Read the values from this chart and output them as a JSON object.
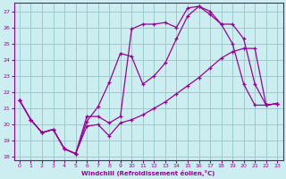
{
  "xlabel": "Windchill (Refroidissement éolien,°C)",
  "bg_color": "#cceef0",
  "grid_color": "#99cccc",
  "line_color": "#990099",
  "ylim": [
    17.8,
    27.5
  ],
  "xlim": [
    -0.5,
    23.5
  ],
  "yticks": [
    18,
    19,
    20,
    21,
    22,
    23,
    24,
    25,
    26,
    27
  ],
  "xticks": [
    0,
    1,
    2,
    3,
    4,
    5,
    6,
    7,
    8,
    9,
    10,
    11,
    12,
    13,
    14,
    15,
    16,
    17,
    18,
    19,
    20,
    21,
    22,
    23
  ],
  "line1_x": [
    0,
    1,
    2,
    3,
    4,
    5,
    6,
    7,
    8,
    9,
    10,
    11,
    12,
    13,
    14,
    15,
    16,
    17,
    18,
    19,
    20,
    21,
    22,
    23
  ],
  "line1_y": [
    21.5,
    20.3,
    19.5,
    19.7,
    18.5,
    18.2,
    19.9,
    20.0,
    19.3,
    20.1,
    20.3,
    20.6,
    21.0,
    21.4,
    21.9,
    22.4,
    22.9,
    23.5,
    24.1,
    24.5,
    24.7,
    24.7,
    21.2,
    21.3
  ],
  "line2_x": [
    0,
    1,
    2,
    3,
    4,
    5,
    6,
    7,
    8,
    9,
    10,
    11,
    12,
    13,
    14,
    15,
    16,
    17,
    18,
    19,
    20,
    21,
    22,
    23
  ],
  "line2_y": [
    21.5,
    20.3,
    19.5,
    19.7,
    18.5,
    18.2,
    20.2,
    21.1,
    22.6,
    24.4,
    24.2,
    22.5,
    23.0,
    23.8,
    25.3,
    26.7,
    27.3,
    26.8,
    26.2,
    25.0,
    22.5,
    21.2,
    21.2,
    21.3
  ],
  "line3_x": [
    0,
    1,
    2,
    3,
    4,
    5,
    6,
    7,
    8,
    9,
    10,
    11,
    12,
    13,
    14,
    15,
    16,
    17,
    18,
    19,
    20,
    21,
    22,
    23
  ],
  "line3_y": [
    21.5,
    20.3,
    19.5,
    19.7,
    18.5,
    18.2,
    20.5,
    20.5,
    20.1,
    20.5,
    25.9,
    26.2,
    26.2,
    26.3,
    26.0,
    27.2,
    27.3,
    27.0,
    26.2,
    26.2,
    25.3,
    22.5,
    21.2,
    21.3
  ]
}
